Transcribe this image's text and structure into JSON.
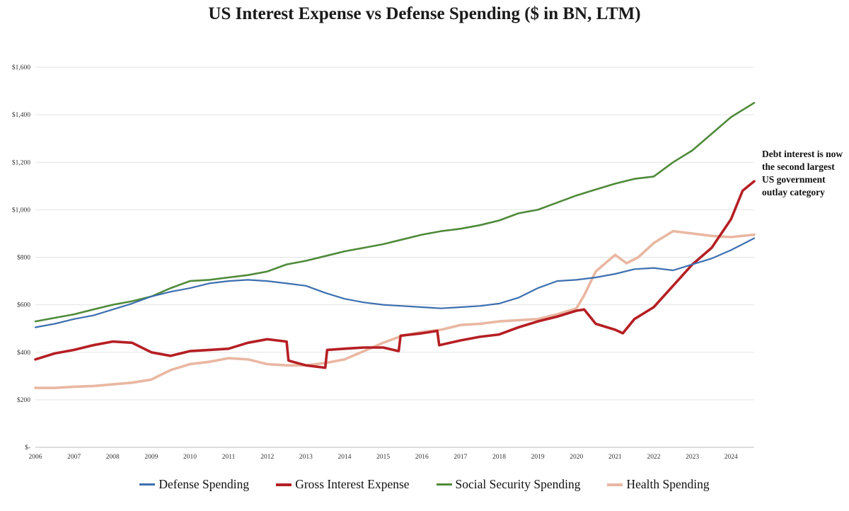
{
  "title": "US Interest Expense vs Defense Spending ($ in BN, LTM)",
  "annotation": "Debt interest is now the second largest US government outlay category",
  "legend": [
    {
      "label": "Defense Spending",
      "color": "#3d6fb0"
    },
    {
      "label": "Gross Interest Expense",
      "color": "#b51f24"
    },
    {
      "label": "Social Security Spending",
      "color": "#4f8a3a"
    },
    {
      "label": "Health Spending",
      "color": "#e9b7a2"
    }
  ],
  "chart_data": {
    "type": "line",
    "title": "US Interest Expense vs Defense Spending ($ in BN, LTM)",
    "xlabel": "",
    "ylabel": "",
    "xlim": [
      2006,
      2024.6
    ],
    "ylim": [
      0,
      1600
    ],
    "x_ticks": [
      "2006",
      "2007",
      "2008",
      "2009",
      "2010",
      "2011",
      "2012",
      "2013",
      "2014",
      "2015",
      "2016",
      "2017",
      "2018",
      "2019",
      "2020",
      "2021",
      "2022",
      "2023",
      "2024"
    ],
    "y_ticks": [
      "$-",
      "$200",
      "$400",
      "$600",
      "$800",
      "$1,000",
      "$1,200",
      "$1,400",
      "$1,600"
    ],
    "grid": "horizontal",
    "legend_position": "bottom",
    "series": [
      {
        "name": "Defense Spending",
        "color": "#3d6fb0",
        "line_width": 2.2,
        "x": [
          2006,
          2006.5,
          2007,
          2007.5,
          2008,
          2008.5,
          2009,
          2009.5,
          2010,
          2010.5,
          2011,
          2011.5,
          2012,
          2012.5,
          2013,
          2013.5,
          2014,
          2014.5,
          2015,
          2015.5,
          2016,
          2016.5,
          2017,
          2017.5,
          2018,
          2018.5,
          2019,
          2019.5,
          2020,
          2020.5,
          2021,
          2021.5,
          2022,
          2022.5,
          2023,
          2023.5,
          2024,
          2024.3,
          2024.6
        ],
        "y": [
          505,
          520,
          540,
          555,
          580,
          605,
          635,
          655,
          670,
          690,
          700,
          705,
          700,
          690,
          680,
          650,
          625,
          610,
          600,
          595,
          590,
          585,
          590,
          595,
          605,
          630,
          670,
          700,
          705,
          715,
          730,
          750,
          755,
          745,
          770,
          795,
          830,
          855,
          880
        ]
      },
      {
        "name": "Gross Interest Expense",
        "color": "#b51f24",
        "line_width": 3.6,
        "x": [
          2006,
          2006.5,
          2007,
          2007.5,
          2008,
          2008.5,
          2009,
          2009.5,
          2010,
          2010.5,
          2011,
          2011.5,
          2012,
          2012.5,
          2012.55,
          2013,
          2013.5,
          2013.55,
          2014,
          2014.5,
          2015,
          2015.4,
          2015.45,
          2016,
          2016.4,
          2016.45,
          2017,
          2017.5,
          2018,
          2018.5,
          2019,
          2019.5,
          2020,
          2020.2,
          2020.5,
          2021,
          2021.2,
          2021.5,
          2022,
          2022.5,
          2023,
          2023.5,
          2024,
          2024.3,
          2024.6
        ],
        "y": [
          370,
          395,
          410,
          430,
          445,
          440,
          400,
          385,
          405,
          410,
          415,
          440,
          455,
          445,
          365,
          345,
          335,
          410,
          415,
          420,
          420,
          405,
          470,
          480,
          490,
          430,
          450,
          465,
          475,
          505,
          530,
          550,
          575,
          580,
          520,
          495,
          480,
          540,
          590,
          680,
          770,
          840,
          960,
          1080,
          1120
        ]
      },
      {
        "name": "Social Security Spending",
        "color": "#4f8a3a",
        "line_width": 2.6,
        "x": [
          2006,
          2006.5,
          2007,
          2007.5,
          2008,
          2008.5,
          2009,
          2009.5,
          2010,
          2010.5,
          2011,
          2011.5,
          2012,
          2012.5,
          2013,
          2013.5,
          2014,
          2014.5,
          2015,
          2015.5,
          2016,
          2016.5,
          2017,
          2017.5,
          2018,
          2018.5,
          2019,
          2019.5,
          2020,
          2020.5,
          2021,
          2021.5,
          2022,
          2022.5,
          2023,
          2023.5,
          2024,
          2024.6
        ],
        "y": [
          530,
          545,
          560,
          580,
          600,
          615,
          635,
          670,
          700,
          705,
          715,
          725,
          740,
          770,
          785,
          805,
          825,
          840,
          855,
          875,
          895,
          910,
          920,
          935,
          955,
          985,
          1000,
          1030,
          1060,
          1085,
          1110,
          1130,
          1140,
          1200,
          1250,
          1320,
          1390,
          1450
        ]
      },
      {
        "name": "Health Spending",
        "color": "#e9b7a2",
        "line_width": 3.6,
        "x": [
          2006,
          2006.5,
          2007,
          2007.5,
          2008,
          2008.5,
          2009,
          2009.5,
          2010,
          2010.5,
          2011,
          2011.5,
          2012,
          2012.5,
          2013,
          2013.5,
          2014,
          2014.5,
          2015,
          2015.5,
          2016,
          2016.5,
          2017,
          2017.5,
          2018,
          2018.5,
          2019,
          2019.5,
          2020,
          2020.2,
          2020.5,
          2021,
          2021.3,
          2021.6,
          2022,
          2022.5,
          2023,
          2023.5,
          2024,
          2024.6
        ],
        "y": [
          250,
          250,
          255,
          258,
          265,
          272,
          285,
          325,
          350,
          360,
          375,
          370,
          350,
          345,
          345,
          355,
          370,
          405,
          440,
          470,
          485,
          495,
          515,
          520,
          530,
          535,
          540,
          560,
          585,
          640,
          740,
          810,
          775,
          800,
          860,
          910,
          900,
          890,
          885,
          895
        ]
      }
    ]
  }
}
